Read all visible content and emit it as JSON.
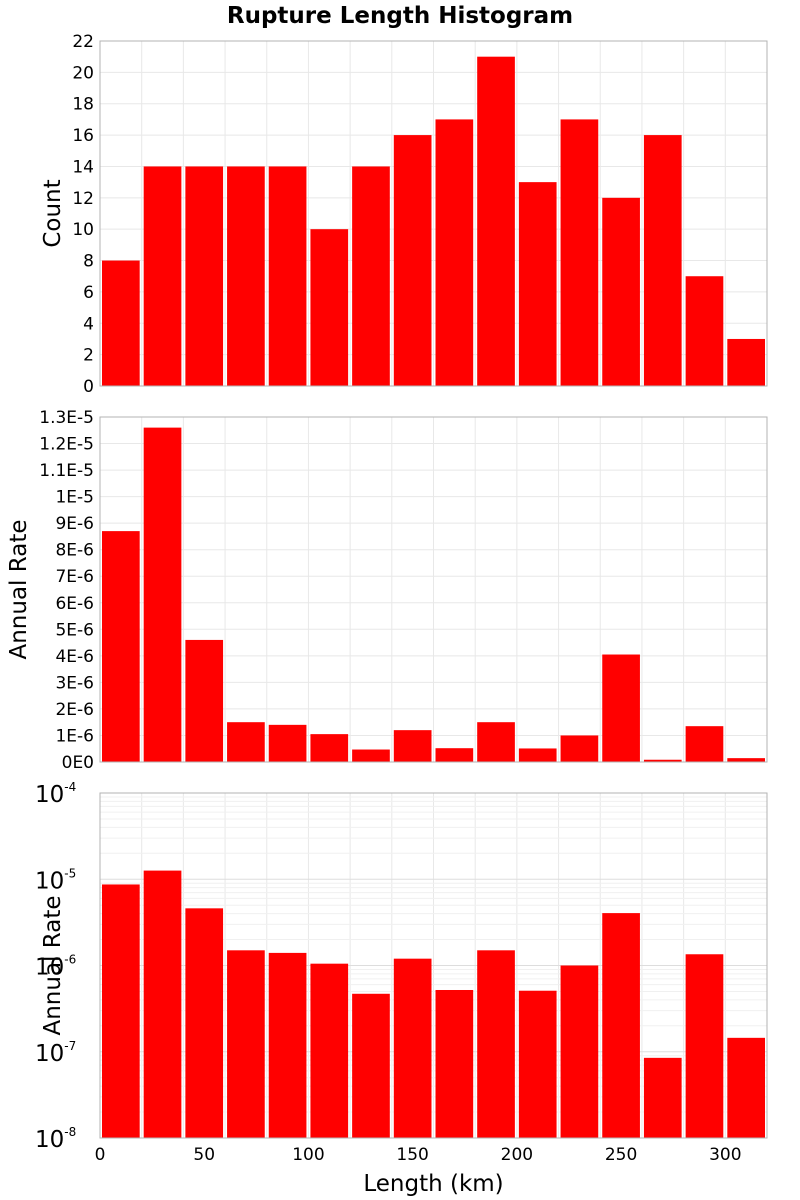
{
  "chart_title": "Rupture Length Histogram",
  "colors": {
    "bar": "#ff0000",
    "grid": "#e8e8e8",
    "frame": "#b3b3b3"
  },
  "chart_data": [
    {
      "type": "bar",
      "scale": "linear",
      "title": "Rupture Length Histogram",
      "xlabel": "",
      "ylabel": "Count",
      "x": [
        10,
        30,
        50,
        70,
        90,
        110,
        130,
        150,
        170,
        190,
        210,
        230,
        250,
        270,
        290,
        310
      ],
      "bin_width": 20,
      "values": [
        8,
        14,
        14,
        14,
        14,
        10,
        14,
        16,
        17,
        21,
        13,
        17,
        12,
        16,
        7,
        3
      ],
      "xlim": [
        0,
        320
      ],
      "ylim": [
        0,
        22
      ],
      "yticks": [
        0,
        2,
        4,
        6,
        8,
        10,
        12,
        14,
        16,
        18,
        20,
        22
      ],
      "ytick_labels": [
        "0",
        "2",
        "4",
        "6",
        "8",
        "10",
        "12",
        "14",
        "16",
        "18",
        "20",
        "22"
      ],
      "grid": true
    },
    {
      "type": "bar",
      "scale": "linear",
      "xlabel": "",
      "ylabel": "Annual Rate",
      "x": [
        10,
        30,
        50,
        70,
        90,
        110,
        130,
        150,
        170,
        190,
        210,
        230,
        250,
        270,
        290,
        310
      ],
      "bin_width": 20,
      "values": [
        8.7e-06,
        1.26e-05,
        4.6e-06,
        1.5e-06,
        1.4e-06,
        1.05e-06,
        4.7e-07,
        1.2e-06,
        5.2e-07,
        1.5e-06,
        5.1e-07,
        1e-06,
        4.05e-06,
        8.5e-08,
        1.35e-06,
        1.45e-07
      ],
      "xlim": [
        0,
        320
      ],
      "ylim": [
        0,
        1.3e-05
      ],
      "yticks": [
        0,
        1e-06,
        2e-06,
        3e-06,
        4e-06,
        5e-06,
        6e-06,
        7e-06,
        8e-06,
        9e-06,
        1e-05,
        1.1e-05,
        1.2e-05,
        1.3e-05
      ],
      "ytick_labels": [
        "0E0",
        "1E-6",
        "2E-6",
        "3E-6",
        "4E-6",
        "5E-6",
        "6E-6",
        "7E-6",
        "8E-6",
        "9E-6",
        "1E-5",
        "1.1E-5",
        "1.2E-5",
        "1.3E-5"
      ],
      "grid": true
    },
    {
      "type": "bar",
      "scale": "log",
      "xlabel": "Length (km)",
      "ylabel": "Annual Rate",
      "x": [
        10,
        30,
        50,
        70,
        90,
        110,
        130,
        150,
        170,
        190,
        210,
        230,
        250,
        270,
        290,
        310
      ],
      "bin_width": 20,
      "values": [
        8.7e-06,
        1.26e-05,
        4.6e-06,
        1.5e-06,
        1.4e-06,
        1.05e-06,
        4.7e-07,
        1.2e-06,
        5.2e-07,
        1.5e-06,
        5.1e-07,
        1e-06,
        4.05e-06,
        8.5e-08,
        1.35e-06,
        1.45e-07
      ],
      "xlim": [
        0,
        320
      ],
      "ylim": [
        1e-08,
        0.0001
      ],
      "ytick_base": "10",
      "ytick_exponents": [
        "-8",
        "-7",
        "-6",
        "-5",
        "-4"
      ],
      "xticks": [
        0,
        50,
        100,
        150,
        200,
        250,
        300
      ],
      "xtick_labels": [
        "0",
        "50",
        "100",
        "150",
        "200",
        "250",
        "300"
      ],
      "grid": true
    }
  ]
}
